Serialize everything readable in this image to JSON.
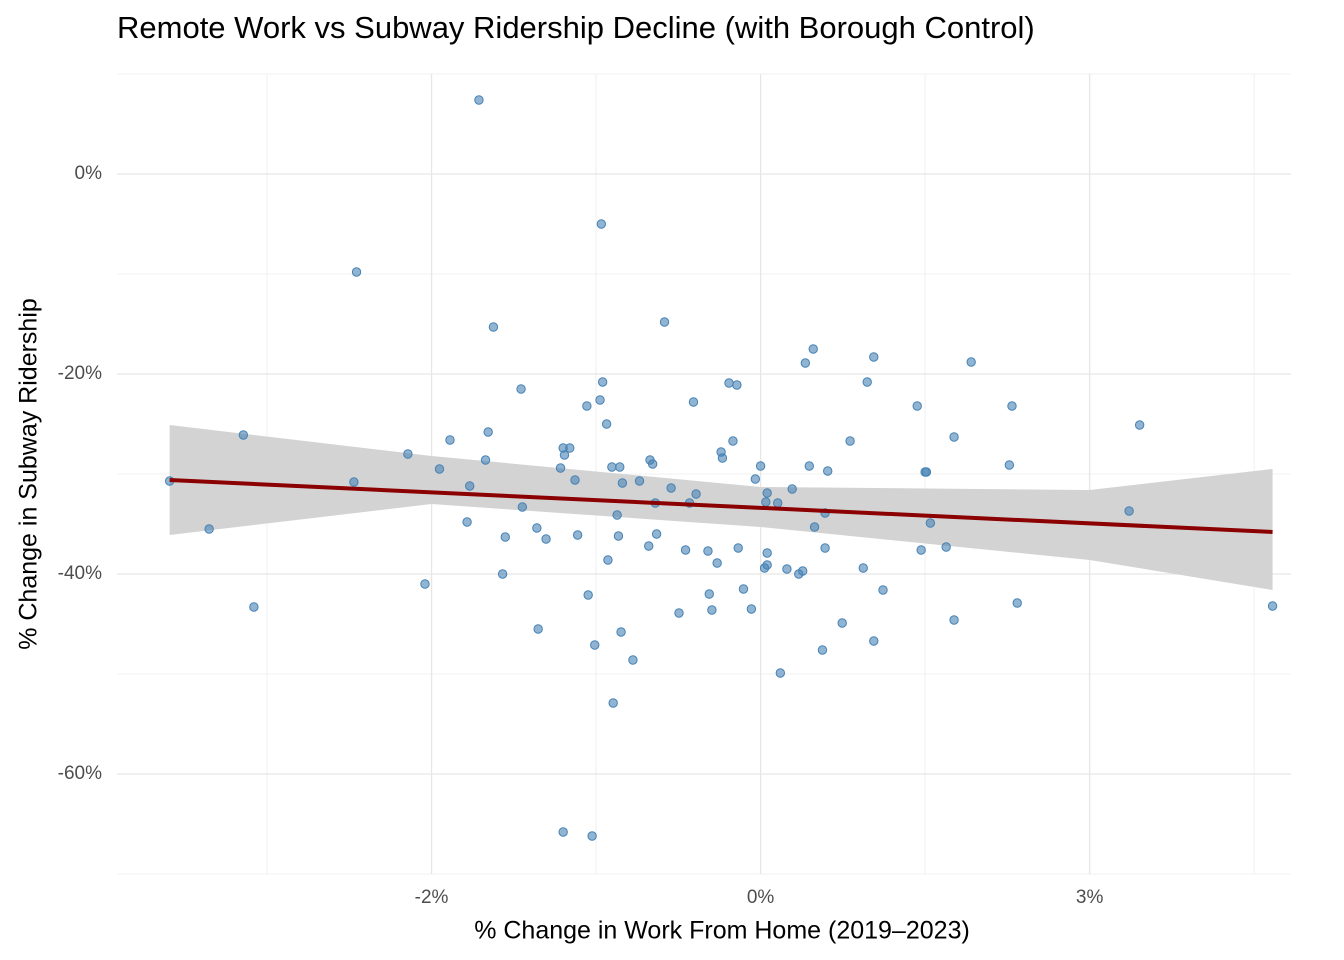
{
  "chart_data": {
    "type": "scatter",
    "title": "Remote Work vs Subway Ridership Decline (with Borough Control)",
    "x_label": "% Change in Work From Home (2019–2023)",
    "y_label": "% Change in Subway Ridership",
    "color": "#4682b4",
    "x": [
      -2.14,
      -1.21,
      -3.07,
      -2.03,
      -0.73,
      0.4,
      0.86,
      1.6,
      0.34,
      -1.2,
      -1.82,
      -0.24,
      -0.18,
      0.81,
      -1.22,
      -1.32,
      -0.51,
      1.19,
      1.91,
      -1.17,
      2.88,
      -3.93,
      -2.07,
      -2.36,
      -0.21,
      1.47,
      0.68,
      -0.3,
      -1.5,
      -1.45,
      -1.49,
      -2.68,
      -0.29,
      -2.09,
      -0.84,
      -0.82,
      0.0,
      -1.13,
      0.37,
      -2.44,
      1.89,
      0.51,
      1.25,
      1.26,
      -1.52,
      -1.07,
      -1.41,
      -1.05,
      -4.49,
      -3.09,
      -2.21,
      -0.92,
      -0.04,
      -0.68,
      0.05,
      -0.49,
      0.24,
      -0.8,
      -0.54,
      -1.81,
      0.04,
      -1.09,
      0.13,
      0.49,
      -2.23,
      1.29,
      -1.7,
      -4.19,
      0.41,
      2.8,
      -1.94,
      -1.39,
      -1.08,
      -1.63,
      -0.85,
      -0.79,
      -0.17,
      0.49,
      1.22,
      1.41,
      0.05,
      -0.57,
      -0.4,
      -1.16,
      -0.33,
      0.05,
      0.03,
      -1.96,
      0.2,
      0.32,
      0.29,
      0.78,
      -2.55,
      -0.13,
      0.93,
      -0.39,
      -1.31,
      -3.85,
      1.95,
      -0.37,
      -0.07,
      3.89,
      -0.62,
      1.47,
      0.62,
      -1.69,
      -1.06,
      0.86,
      -1.26,
      0.47,
      -0.97,
      0.15,
      -1.12,
      -1.5,
      -1.28
    ],
    "values": [
      7.4,
      -5.0,
      -9.8,
      -15.3,
      -14.8,
      -17.5,
      -18.3,
      -18.8,
      -18.9,
      -20.8,
      -21.5,
      -20.9,
      -21.1,
      -20.8,
      -22.6,
      -23.2,
      -22.8,
      -23.2,
      -23.2,
      -25.0,
      -25.1,
      -26.1,
      -25.8,
      -26.6,
      -26.7,
      -26.3,
      -26.7,
      -27.8,
      -27.4,
      -27.4,
      -28.1,
      -28.0,
      -28.4,
      -28.6,
      -28.6,
      -29.0,
      -29.2,
      -29.3,
      -29.2,
      -29.5,
      -29.1,
      -29.7,
      -29.8,
      -29.8,
      -29.4,
      -29.3,
      -30.6,
      -30.9,
      -30.7,
      -30.8,
      -31.2,
      -30.7,
      -30.5,
      -31.4,
      -31.9,
      -32.0,
      -31.5,
      -32.9,
      -32.9,
      -33.3,
      -32.8,
      -34.1,
      -32.9,
      -33.9,
      -34.8,
      -34.9,
      -35.4,
      -35.5,
      -35.3,
      -33.7,
      -36.3,
      -36.1,
      -36.2,
      -36.5,
      -37.2,
      -36.0,
      -37.4,
      -37.4,
      -37.6,
      -37.3,
      -37.9,
      -37.6,
      -37.7,
      -38.6,
      -38.9,
      -39.1,
      -39.4,
      -40.0,
      -39.5,
      -39.7,
      -40.0,
      -39.4,
      -41.0,
      -41.5,
      -41.6,
      -42.0,
      -42.1,
      -43.3,
      -42.9,
      -43.6,
      -43.5,
      -43.2,
      -43.9,
      -44.6,
      -44.9,
      -45.5,
      -45.8,
      -46.7,
      -47.1,
      -47.6,
      -48.6,
      -49.9,
      -52.9,
      -65.8,
      -66.2
    ],
    "fit": {
      "x": [
        -4.49,
        3.89
      ],
      "values": [
        -30.6,
        -35.8
      ],
      "color": "#8b0000"
    },
    "band": {
      "x": [
        -4.49,
        -2.5,
        0,
        2.5,
        3.89
      ],
      "upper": [
        -25.1,
        -28.2,
        -31.3,
        -31.6,
        -29.5
      ],
      "lower": [
        -36.1,
        -33.0,
        -35.3,
        -38.6,
        -41.6
      ],
      "color": "#d3d3d3"
    },
    "xlim": [
      -4.89,
      4.03
    ],
    "ylim": [
      -70,
      10
    ],
    "xticks": [
      {
        "value": -2.5,
        "label": "-2%"
      },
      {
        "value": 0,
        "label": "0%"
      },
      {
        "value": 2.5,
        "label": "3%"
      }
    ],
    "yticks": [
      {
        "value": -60,
        "label": "-60%"
      },
      {
        "value": -40,
        "label": "-40%"
      },
      {
        "value": -20,
        "label": "-20%"
      },
      {
        "value": 0,
        "label": "0%"
      }
    ],
    "grid": true
  }
}
